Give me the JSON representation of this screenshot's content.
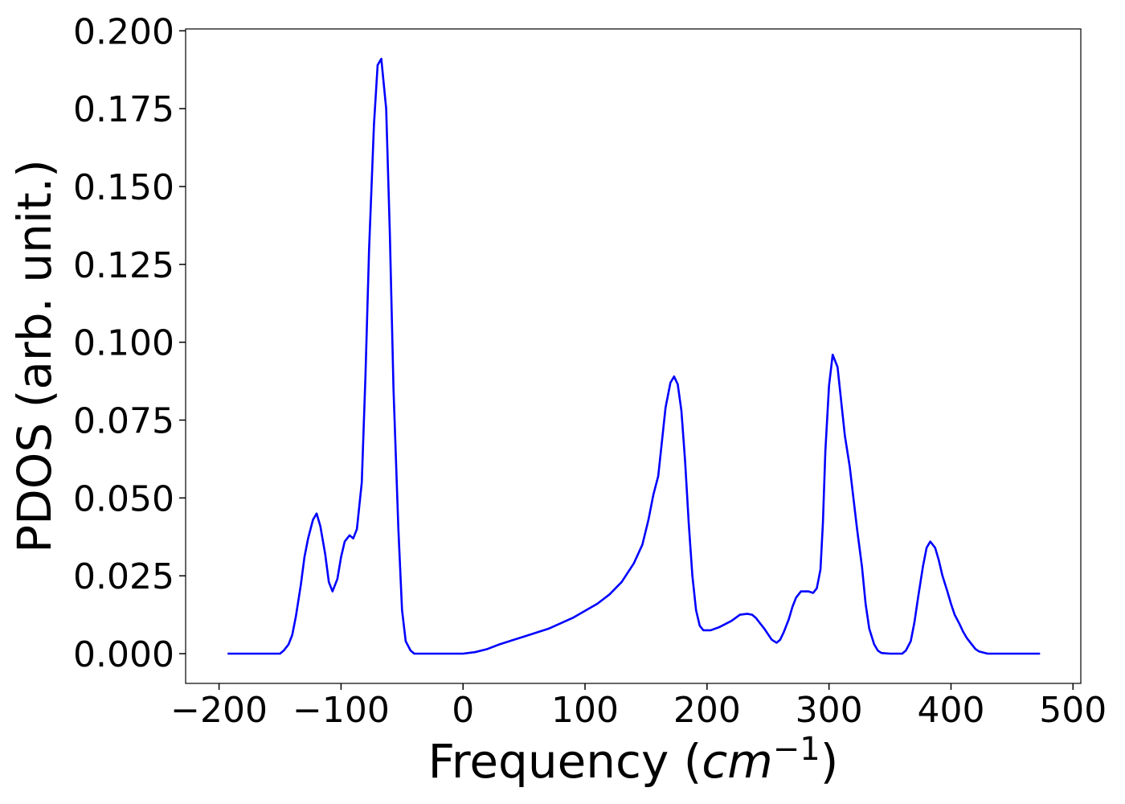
{
  "chart_data": {
    "type": "line",
    "xlabel": [
      "Frequency (",
      "cm",
      "−1",
      ")"
    ],
    "ylabel": "PDOS (arb. unit.)",
    "color": "#0000ff",
    "x": [
      -193,
      -150,
      -147,
      -143,
      -140,
      -137,
      -133,
      -130,
      -127,
      -123,
      -120,
      -117,
      -113,
      -110,
      -107,
      -103,
      -100,
      -97,
      -93,
      -90,
      -87,
      -83,
      -80,
      -77,
      -73,
      -70,
      -67,
      -63,
      -60,
      -57,
      -53,
      -50,
      -47,
      -43,
      -40,
      0,
      10,
      20,
      30,
      50,
      70,
      90,
      110,
      120,
      130,
      140,
      147,
      152,
      156,
      160,
      163,
      166,
      170,
      173,
      176,
      179,
      182,
      185,
      188,
      191,
      194,
      197,
      203,
      210,
      220,
      227,
      233,
      237,
      240,
      247,
      253,
      257,
      260,
      263,
      267,
      270,
      273,
      277,
      283,
      287,
      290,
      293,
      295,
      297,
      300,
      303,
      307,
      310,
      313,
      317,
      320,
      323,
      327,
      330,
      333,
      337,
      340,
      343,
      350,
      360,
      363,
      367,
      370,
      373,
      377,
      380,
      383,
      387,
      390,
      393,
      397,
      400,
      403,
      407,
      410,
      413,
      417,
      420,
      423,
      430,
      473
    ],
    "values": [
      0,
      0,
      0.001,
      0.003,
      0.006,
      0.012,
      0.022,
      0.031,
      0.037,
      0.043,
      0.045,
      0.041,
      0.032,
      0.023,
      0.02,
      0.024,
      0.031,
      0.036,
      0.038,
      0.037,
      0.04,
      0.055,
      0.089,
      0.13,
      0.17,
      0.189,
      0.191,
      0.175,
      0.135,
      0.085,
      0.04,
      0.014,
      0.004,
      0.001,
      0,
      0,
      0.0005,
      0.0015,
      0.003,
      0.0055,
      0.008,
      0.0115,
      0.016,
      0.019,
      0.023,
      0.029,
      0.035,
      0.043,
      0.051,
      0.057,
      0.068,
      0.079,
      0.087,
      0.089,
      0.0865,
      0.078,
      0.062,
      0.042,
      0.025,
      0.014,
      0.009,
      0.0075,
      0.0075,
      0.0085,
      0.0105,
      0.0125,
      0.0128,
      0.0125,
      0.0115,
      0.008,
      0.0045,
      0.0035,
      0.0045,
      0.007,
      0.011,
      0.015,
      0.018,
      0.02,
      0.02,
      0.0195,
      0.021,
      0.027,
      0.042,
      0.065,
      0.086,
      0.096,
      0.092,
      0.081,
      0.07,
      0.06,
      0.05,
      0.04,
      0.028,
      0.016,
      0.008,
      0.003,
      0.001,
      0.0002,
      0,
      0,
      0.001,
      0.004,
      0.01,
      0.018,
      0.028,
      0.034,
      0.036,
      0.034,
      0.03,
      0.025,
      0.02,
      0.016,
      0.0125,
      0.0095,
      0.007,
      0.005,
      0.003,
      0.0015,
      0.0007,
      0,
      0
    ],
    "xlim": [
      -227.4,
      506.4
    ],
    "ylim": [
      -0.00955,
      0.2006
    ],
    "xticks": [
      {
        "value": -200,
        "label": "−200"
      },
      {
        "value": -100,
        "label": "−100"
      },
      0,
      100,
      200,
      300,
      400,
      500
    ],
    "yticks": [
      {
        "value": 0,
        "label": "0.000"
      },
      {
        "value": 0.025,
        "label": "0.025"
      },
      {
        "value": 0.05,
        "label": "0.050"
      },
      {
        "value": 0.075,
        "label": "0.075"
      },
      {
        "value": 0.1,
        "label": "0.100"
      },
      {
        "value": 0.125,
        "label": "0.125"
      },
      {
        "value": 0.15,
        "label": "0.150"
      },
      {
        "value": 0.175,
        "label": "0.175"
      },
      {
        "value": 0.2,
        "label": "0.200"
      }
    ]
  }
}
